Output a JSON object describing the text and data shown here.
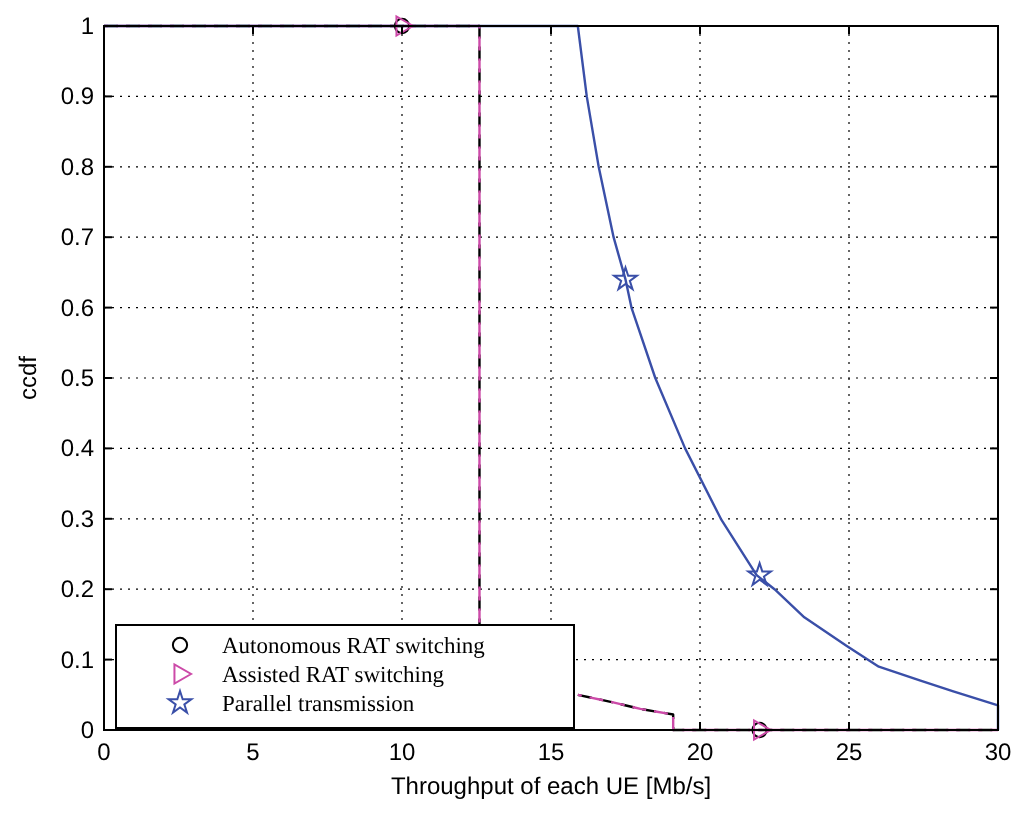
{
  "chart_data": {
    "type": "line",
    "xlabel": "Throughput of each UE [Mb/s]",
    "ylabel": "ccdf",
    "xlim": [
      0,
      30
    ],
    "xticks": [
      0,
      5,
      10,
      15,
      20,
      25,
      30
    ],
    "ylim": [
      0,
      1
    ],
    "yticks": [
      0,
      0.1,
      0.2,
      0.3,
      0.4,
      0.5,
      0.6,
      0.7,
      0.8,
      0.9,
      1
    ],
    "grid": true,
    "legend": "bottom left",
    "series": [
      {
        "color": "#000000",
        "line_style": "dashed",
        "x": [
          0,
          12.6,
          12.6,
          13,
          15.9,
          17,
          18,
          19.1,
          19.1,
          30
        ],
        "values": [
          1,
          1,
          0.15,
          null,
          0.05,
          0.04,
          0.03,
          0.022,
          0,
          0
        ]
      },
      {
        "color": "#cc4aa8",
        "line_style": "dashed",
        "x": [
          0,
          12.6,
          12.6,
          13,
          15.9,
          17,
          18,
          19.1,
          19.1,
          30
        ],
        "values": [
          1,
          1,
          0.15,
          null,
          0.05,
          0.04,
          0.03,
          0.022,
          0,
          0
        ]
      },
      {
        "color": "#3a4fa8",
        "line_style": "solid",
        "x": [
          0,
          15.9,
          16.2,
          16.6,
          17.1,
          17.5,
          17.7,
          18.5,
          19.5,
          20.7,
          21.9,
          22.5,
          23.5,
          24.9,
          26,
          27.4,
          28.5,
          30,
          30
        ],
        "values": [
          1,
          1,
          0.9,
          0.8,
          0.7,
          0.64,
          0.6,
          0.5,
          0.4,
          0.3,
          0.22,
          0.2,
          0.16,
          0.12,
          0.09,
          0.07,
          0.055,
          0.035,
          0
        ]
      },
      {
        "type": "scatter",
        "name": "Autonomous RAT switching",
        "color": "#000000",
        "marker": "circle",
        "x": [
          10,
          22
        ],
        "values": [
          1,
          0
        ]
      },
      {
        "type": "scatter",
        "name": "Assisted RAT switching",
        "color": "#cc4aa8",
        "marker": "triangle",
        "x": [
          10,
          22
        ],
        "values": [
          1,
          0
        ]
      },
      {
        "type": "scatter",
        "name": "Parallel transmission",
        "color": "#3a4fa8",
        "marker": "star",
        "x": [
          17.5,
          22
        ],
        "values": [
          0.64,
          0.22
        ]
      }
    ]
  }
}
